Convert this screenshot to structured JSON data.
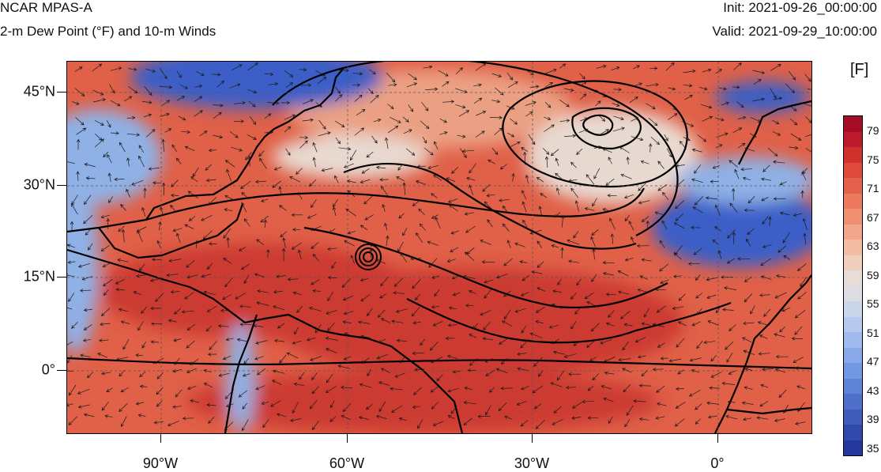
{
  "header": {
    "title": "NCAR MPAS-A",
    "subtitle": "2-m Dew Point (°F) and 10-m Winds",
    "init": "Init: 2021-09-26_00:00:00",
    "valid": "Valid: 2021-09-29_10:00:00"
  },
  "map": {
    "lat_labels": [
      "45°N",
      "30°N",
      "15°N",
      "0°"
    ],
    "lon_labels": [
      "90°W",
      "60°W",
      "30°W",
      "0°"
    ],
    "colors": {
      "warm": "#e06048",
      "hot": "#cc3a30",
      "mild": "#eba083",
      "neutral": "#e8d9d0",
      "cool": "#8fb1e6",
      "cold": "#3a5fc7",
      "land_line": "#000000",
      "contour": "#000000"
    }
  },
  "colorbar": {
    "unit": "[F]",
    "labels": [
      "79",
      "75",
      "71",
      "67",
      "63",
      "59",
      "55",
      "51",
      "47",
      "43",
      "39",
      "35"
    ],
    "colors": [
      "#a50d26",
      "#bd1b2c",
      "#d0312d",
      "#dd4a3b",
      "#e6614c",
      "#ed7a5f",
      "#f09073",
      "#f2a78b",
      "#f3bda4",
      "#f0cfbd",
      "#e8ddd6",
      "#dcdee4",
      "#cbd6ea",
      "#b6caef",
      "#9fbbef",
      "#88aaeb",
      "#7398e3",
      "#5f84d7",
      "#4e70c9",
      "#3f5cbb",
      "#3249ac",
      "#27389d"
    ]
  }
}
